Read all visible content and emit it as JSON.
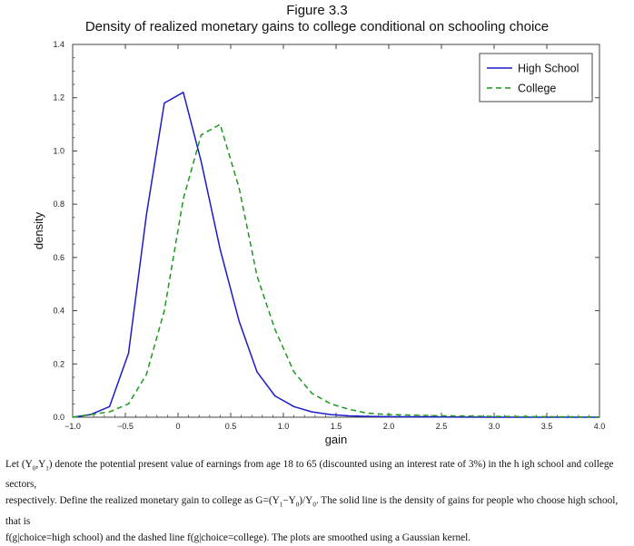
{
  "figure": {
    "label": "Figure 3.3",
    "title": "Density of realized monetary gains to college conditional on schooling choice"
  },
  "chart_data": {
    "type": "line",
    "xlabel": "gain",
    "ylabel": "density",
    "xlim": [
      -1.0,
      4.0
    ],
    "ylim": [
      0,
      1.4
    ],
    "xticks": [
      "−1.0",
      "−0.5",
      "0",
      "0.5",
      "1.0",
      "1.5",
      "2.0",
      "2.5",
      "3.0",
      "3.5",
      "4.0"
    ],
    "xtick_values": [
      -1.0,
      -0.5,
      0,
      0.5,
      1.0,
      1.5,
      2.0,
      2.5,
      3.0,
      3.5,
      4.0
    ],
    "yticks": [
      "0.0",
      "0.2",
      "0.4",
      "0.6",
      "0.8",
      "1.0",
      "1.2",
      "1.4"
    ],
    "ytick_values": [
      0.0,
      0.2,
      0.4,
      0.6,
      0.8,
      1.0,
      1.2,
      1.4
    ],
    "grid": false,
    "legend_position": "top-right",
    "series": [
      {
        "name": "High School",
        "color": "#1c1cc8",
        "style": "solid",
        "x": [
          -1.0,
          -0.83,
          -0.65,
          -0.47,
          -0.3,
          -0.13,
          0.05,
          0.22,
          0.4,
          0.58,
          0.75,
          0.92,
          1.1,
          1.27,
          1.45,
          1.62,
          1.8,
          2.0,
          2.5,
          3.0,
          3.5,
          4.0
        ],
        "y": [
          0.0,
          0.01,
          0.04,
          0.24,
          0.76,
          1.18,
          1.22,
          0.96,
          0.63,
          0.36,
          0.17,
          0.08,
          0.04,
          0.02,
          0.01,
          0.005,
          0.003,
          0.002,
          0.001,
          0.0,
          0.0,
          0.0
        ]
      },
      {
        "name": "College",
        "color": "#1a9a1a",
        "style": "dashed",
        "x": [
          -1.0,
          -0.83,
          -0.65,
          -0.47,
          -0.3,
          -0.13,
          0.05,
          0.22,
          0.4,
          0.58,
          0.75,
          0.92,
          1.1,
          1.27,
          1.45,
          1.62,
          1.8,
          2.0,
          2.5,
          3.0,
          3.5,
          4.0
        ],
        "y": [
          0.0,
          0.01,
          0.02,
          0.05,
          0.16,
          0.4,
          0.82,
          1.06,
          1.1,
          0.86,
          0.53,
          0.33,
          0.17,
          0.09,
          0.05,
          0.03,
          0.015,
          0.01,
          0.005,
          0.003,
          0.002,
          0.001
        ]
      }
    ]
  },
  "caption": {
    "line1": [
      "Let (Y",
      "0",
      ",Y",
      "1",
      ") denote the potential present value of earnings from age 18 to 65 (discounted using an interest rate of 3%) in the h igh school and college sectors,"
    ],
    "line2": [
      "respectively. Define the realized monetary gain to college as G=(Y",
      "1",
      "−Y",
      "0",
      ")/Y",
      "0",
      ". The solid line is the density of gains for people who choose high school, that is"
    ],
    "line3": "f(g|choice=high school) and the dashed line f(g|choice=college). The plots are smoothed using a Gaussian kernel."
  }
}
